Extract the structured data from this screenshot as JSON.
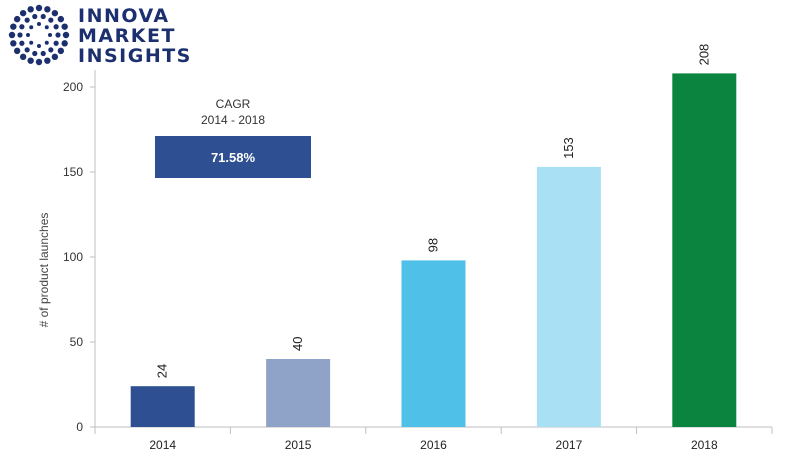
{
  "logo": {
    "lines": [
      "INNOVA",
      "MARKET",
      "INSIGHTS"
    ]
  },
  "cagr": {
    "label": "CAGR",
    "period": "2014 - 2018",
    "value": "71.58%"
  },
  "colors": {
    "2014": "#2e4f91",
    "2015": "#8fa3c8",
    "2016": "#4fc0e8",
    "2017": "#a9e0f4",
    "2018": "#0b8440"
  },
  "chart_data": {
    "type": "bar",
    "title": "",
    "xlabel": "",
    "ylabel": "# of product launches",
    "categories": [
      "2014",
      "2015",
      "2016",
      "2017",
      "2018"
    ],
    "values": [
      24,
      40,
      98,
      153,
      208
    ],
    "data_labels": [
      "24",
      "40",
      "98",
      "153",
      "208"
    ],
    "ylim": [
      0,
      210
    ],
    "yticks": [
      0,
      50,
      100,
      150,
      200
    ],
    "grid": false,
    "legend": "none"
  }
}
